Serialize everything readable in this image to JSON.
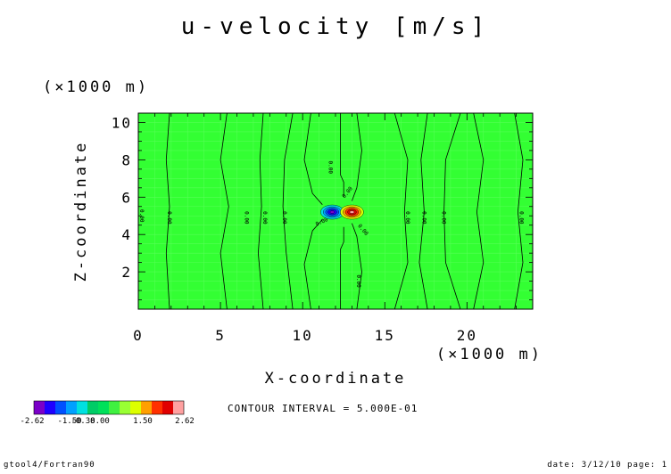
{
  "chart_data": {
    "type": "heatmap",
    "title": "u-velocity [m/s]",
    "xlabel": "X-coordinate",
    "ylabel": "Z-coordinate",
    "x_unit": "(×1000 m)",
    "y_unit": "(×1000 m)",
    "xlim": [
      0,
      24
    ],
    "ylim": [
      0,
      10.5
    ],
    "x_ticks": [
      "0",
      "5",
      "10",
      "15",
      "20"
    ],
    "y_ticks": [
      "2",
      "4",
      "6",
      "8",
      "10"
    ],
    "x_tick_values": [
      0,
      5,
      10,
      15,
      20
    ],
    "y_tick_values": [
      2,
      4,
      6,
      8,
      10
    ],
    "grid": true,
    "background_color": "#33ff33",
    "contour_interval_text": "CONTOUR INTERVAL = 5.000E-01",
    "contour_label": "0.00",
    "features": [
      {
        "kind": "minimum",
        "x": 11.8,
        "z": 5.2,
        "value": -2.62
      },
      {
        "kind": "maximum",
        "x": 13.0,
        "z": 5.2,
        "value": 2.62
      }
    ],
    "colorbar": {
      "colors": [
        "#7a00c8",
        "#1e00ff",
        "#0050ff",
        "#00a0ff",
        "#00e0e0",
        "#00cc66",
        "#00e05a",
        "#40f040",
        "#99ff33",
        "#ddff00",
        "#ffa000",
        "#ff3000",
        "#e00000",
        "#ffa0a0"
      ],
      "labels": [
        "-2.62",
        "-1.50",
        "-0.38",
        "0.00",
        "1.50",
        "2.62"
      ]
    }
  },
  "footer": {
    "left": "gtool4/Fortran90",
    "right": "date: 3/12/10 page: 1"
  }
}
